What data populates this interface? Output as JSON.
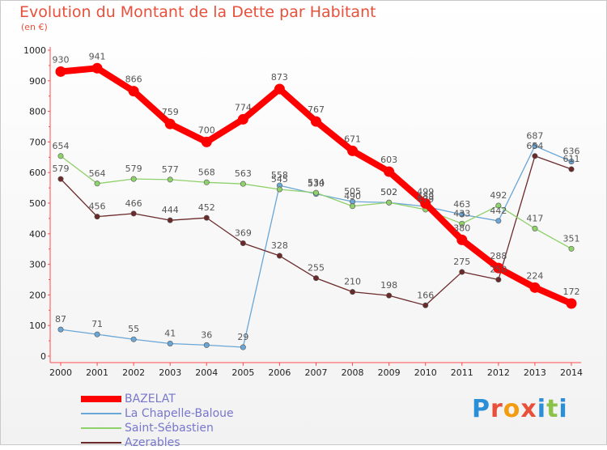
{
  "title": "Evolution du Montant de la Dette par Habitant",
  "subtitle": "(en €)",
  "logo": "Proxiti",
  "chart_data": {
    "type": "line",
    "x": [
      "2000",
      "2001",
      "2002",
      "2003",
      "2004",
      "2005",
      "2006",
      "2007",
      "2008",
      "2009",
      "2010",
      "2011",
      "2012",
      "2013",
      "2014"
    ],
    "ylim": [
      0,
      1000
    ],
    "yticks": [
      0,
      100,
      200,
      300,
      400,
      500,
      600,
      700,
      800,
      900,
      1000
    ],
    "grid": false,
    "legend_position": "bottom-left",
    "series": [
      {
        "name": "BAZELAT",
        "color": "#ff0000",
        "values": [
          930,
          941,
          866,
          759,
          700,
          774,
          873,
          767,
          671,
          603,
          499,
          380,
          288,
          224,
          172
        ]
      },
      {
        "name": "La Chapelle-Baloue",
        "color": "#6aa6d6",
        "values": [
          87,
          71,
          55,
          41,
          36,
          29,
          558,
          530,
          505,
          502,
          489,
          463,
          442,
          687,
          636
        ]
      },
      {
        "name": "Saint-Sébastien",
        "color": "#8fd16a",
        "values": [
          654,
          564,
          579,
          577,
          568,
          563,
          545,
          534,
          490,
          502,
          479,
          433,
          492,
          417,
          351
        ]
      },
      {
        "name": "Azerables",
        "color": "#6b2a2a",
        "values": [
          579,
          456,
          466,
          444,
          452,
          369,
          328,
          255,
          210,
          198,
          166,
          275,
          250,
          654,
          611
        ]
      }
    ]
  }
}
